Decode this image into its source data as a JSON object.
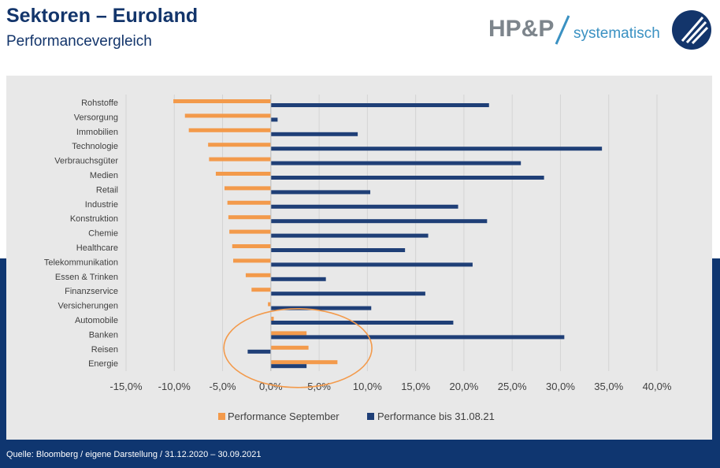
{
  "header": {
    "title": "Sektoren – Euroland",
    "subtitle": "Performancevergleich"
  },
  "logo": {
    "brand": "HP&P",
    "tagline": "systematisch",
    "brand_color": "#7d858c",
    "accent_color": "#3a91c2"
  },
  "footer": {
    "source": "Quelle: Bloomberg / eigene Darstellung / 31.12.2020 – 30.09.2021"
  },
  "colors": {
    "navy": "#0f3670",
    "orange": "#f39a4b",
    "panel": "#e8e8e8"
  },
  "chart_data": {
    "type": "bar",
    "orientation": "horizontal",
    "categories": [
      "Rohstoffe",
      "Versorgung",
      "Immobilien",
      "Technologie",
      "Verbrauchsgüter",
      "Medien",
      "Retail",
      "Industrie",
      "Konstruktion",
      "Chemie",
      "Healthcare",
      "Telekommunikation",
      "Essen & Trinken",
      "Finanzservice",
      "Versicherungen",
      "Automobile",
      "Banken",
      "Reisen",
      "Energie"
    ],
    "series": [
      {
        "name": "Performance September",
        "color": "#f39a4b",
        "values": [
          -10.1,
          -8.9,
          -8.5,
          -6.5,
          -6.4,
          -5.7,
          -4.8,
          -4.5,
          -4.4,
          -4.3,
          -4.0,
          -3.9,
          -2.6,
          -2.0,
          -0.3,
          0.3,
          3.7,
          3.9,
          6.9
        ]
      },
      {
        "name": "Performance bis 31.08.21",
        "color": "#1f3f77",
        "values": [
          22.6,
          0.7,
          9.0,
          34.3,
          25.9,
          28.3,
          10.3,
          19.4,
          22.4,
          16.3,
          13.9,
          20.9,
          5.7,
          16.0,
          10.4,
          18.9,
          30.4,
          -2.4,
          3.7
        ]
      }
    ],
    "x_ticks": [
      "-15,0%",
      "-10,0%",
      "-5,0%",
      "0,0%",
      "5,0%",
      "10,0%",
      "15,0%",
      "20,0%",
      "25,0%",
      "30,0%",
      "35,0%",
      "40,0%"
    ],
    "xlim": [
      -15,
      40
    ],
    "legend_position": "bottom",
    "annotation": "ellipse around Banken, Reisen, Energie"
  }
}
